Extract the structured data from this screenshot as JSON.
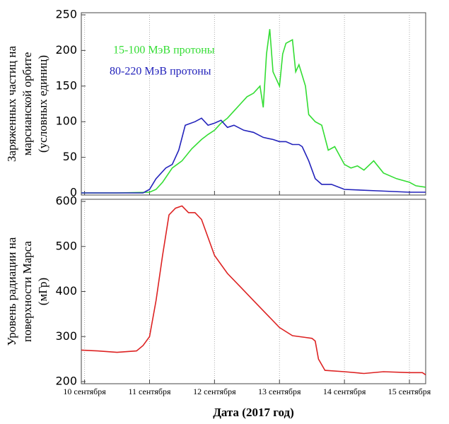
{
  "chart_data": [
    {
      "type": "line",
      "y_label_lines": [
        "Заряженных частиц на",
        "марсианской орбите",
        "(условных единиц)"
      ],
      "xlim": [
        9.95,
        15.25
      ],
      "xticks": [
        10,
        11,
        12,
        13,
        14,
        15
      ],
      "ylim": [
        0,
        250
      ],
      "yticks": [
        0,
        50,
        100,
        150,
        200,
        250
      ],
      "grid": true,
      "legend": "top-left",
      "series": [
        {
          "name": "15-100 МэВ протоны",
          "color": "#33dd33",
          "x": [
            9.95,
            10.5,
            11.0,
            11.1,
            11.2,
            11.35,
            11.5,
            11.65,
            11.8,
            11.9,
            12.0,
            12.1,
            12.2,
            12.3,
            12.4,
            12.5,
            12.6,
            12.7,
            12.75,
            12.8,
            12.85,
            12.9,
            13.0,
            13.05,
            13.1,
            13.2,
            13.25,
            13.3,
            13.4,
            13.45,
            13.55,
            13.65,
            13.75,
            13.85,
            14.0,
            14.1,
            14.2,
            14.3,
            14.45,
            14.6,
            14.8,
            15.0,
            15.1,
            15.25
          ],
          "values": [
            0,
            0,
            1,
            5,
            15,
            35,
            45,
            62,
            75,
            82,
            88,
            98,
            105,
            115,
            125,
            135,
            140,
            150,
            120,
            195,
            230,
            170,
            150,
            195,
            210,
            215,
            170,
            180,
            150,
            110,
            100,
            95,
            60,
            65,
            40,
            35,
            38,
            32,
            45,
            28,
            20,
            15,
            10,
            8
          ]
        },
        {
          "name": "80-220 МэВ протоны",
          "color": "#2222bb",
          "x": [
            9.95,
            10.5,
            10.9,
            11.0,
            11.1,
            11.25,
            11.35,
            11.45,
            11.55,
            11.7,
            11.8,
            11.9,
            12.0,
            12.1,
            12.2,
            12.3,
            12.45,
            12.6,
            12.75,
            12.9,
            13.0,
            13.1,
            13.2,
            13.3,
            13.35,
            13.45,
            13.55,
            13.65,
            13.8,
            14.0,
            14.5,
            15.0,
            15.25
          ],
          "values": [
            0,
            0,
            0,
            5,
            20,
            35,
            40,
            60,
            95,
            100,
            105,
            95,
            98,
            102,
            92,
            95,
            88,
            85,
            78,
            75,
            72,
            72,
            68,
            68,
            65,
            45,
            20,
            12,
            12,
            5,
            3,
            1,
            1
          ]
        }
      ]
    },
    {
      "type": "line",
      "y_label_lines": [
        "Уровень радиации на",
        "поверхности Марса",
        "(мГр)"
      ],
      "x_label": "Дата (2017 год)",
      "xlim": [
        9.95,
        15.25
      ],
      "xticks": [
        {
          "value": 10,
          "label": "10 сентября"
        },
        {
          "value": 11,
          "label": "11 сентября"
        },
        {
          "value": 12,
          "label": "12 сентября"
        },
        {
          "value": 13,
          "label": "13 сентября"
        },
        {
          "value": 14,
          "label": "14 сентября"
        },
        {
          "value": 15,
          "label": "15 сентября"
        }
      ],
      "ylim": [
        200,
        600
      ],
      "yticks": [
        200,
        300,
        400,
        500,
        600
      ],
      "grid": true,
      "series": [
        {
          "color": "#dd2222",
          "x": [
            9.95,
            10.2,
            10.5,
            10.8,
            10.9,
            11.0,
            11.1,
            11.2,
            11.3,
            11.4,
            11.5,
            11.6,
            11.7,
            11.8,
            11.9,
            12.0,
            12.2,
            12.4,
            12.6,
            12.8,
            13.0,
            13.2,
            13.4,
            13.5,
            13.55,
            13.6,
            13.7,
            14.0,
            14.3,
            14.6,
            15.0,
            15.2,
            15.25
          ],
          "values": [
            270,
            268,
            265,
            268,
            280,
            300,
            380,
            480,
            570,
            585,
            590,
            575,
            575,
            560,
            520,
            480,
            440,
            410,
            380,
            350,
            320,
            302,
            298,
            296,
            290,
            250,
            225,
            222,
            218,
            222,
            220,
            220,
            215
          ]
        }
      ]
    }
  ]
}
